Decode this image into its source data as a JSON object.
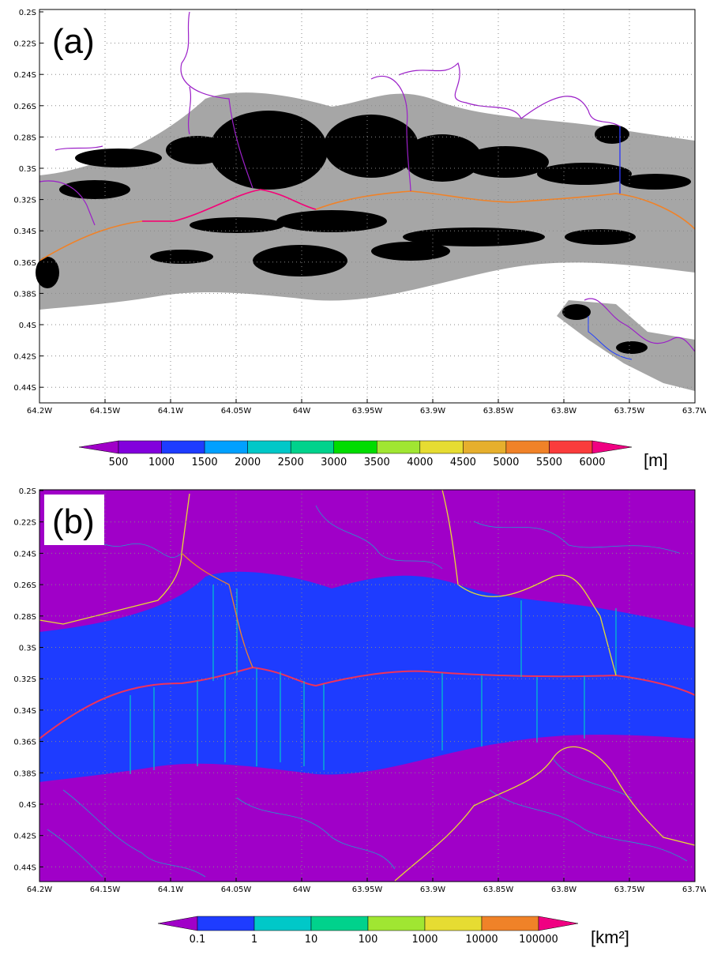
{
  "panels": [
    {
      "label": "(a)",
      "xticks": [
        "64.2W",
        "64.15W",
        "64.1W",
        "64.05W",
        "64W",
        "63.95W",
        "63.9W",
        "63.85W",
        "63.8W",
        "63.75W",
        "63.7W"
      ],
      "yticks": [
        "0.2S",
        "0.22S",
        "0.24S",
        "0.26S",
        "0.28S",
        "0.3S",
        "0.32S",
        "0.34S",
        "0.36S",
        "0.38S",
        "0.4S",
        "0.42S",
        "0.44S"
      ],
      "colorbar": {
        "labels": [
          "500",
          "1000",
          "1500",
          "2000",
          "2500",
          "3000",
          "3500",
          "4000",
          "4500",
          "5000",
          "5500",
          "6000"
        ],
        "colors": [
          "#a000c8",
          "#8200dc",
          "#1e3cff",
          "#00a0ff",
          "#00c8c8",
          "#00d28c",
          "#00dc00",
          "#a0e632",
          "#e6dc32",
          "#e6af2d",
          "#f08228",
          "#fa3c3c",
          "#f00082"
        ],
        "unit": "[m]"
      }
    },
    {
      "label": "(b)",
      "xticks": [
        "64.2W",
        "64.15W",
        "64.1W",
        "64.05W",
        "64W",
        "63.95W",
        "63.9W",
        "63.85W",
        "63.8W",
        "63.75W",
        "63.7W"
      ],
      "yticks": [
        "0.2S",
        "0.22S",
        "0.24S",
        "0.26S",
        "0.28S",
        "0.3S",
        "0.32S",
        "0.34S",
        "0.36S",
        "0.38S",
        "0.4S",
        "0.42S",
        "0.44S"
      ],
      "colorbar": {
        "labels": [
          "0.1",
          "1",
          "10",
          "100",
          "1000",
          "10000",
          "100000"
        ],
        "colors": [
          "#a000c8",
          "#1e3cff",
          "#00c8c8",
          "#00d28c",
          "#a0e632",
          "#e6dc32",
          "#f08228",
          "#f00082"
        ],
        "unit": "[km²]"
      }
    }
  ]
}
